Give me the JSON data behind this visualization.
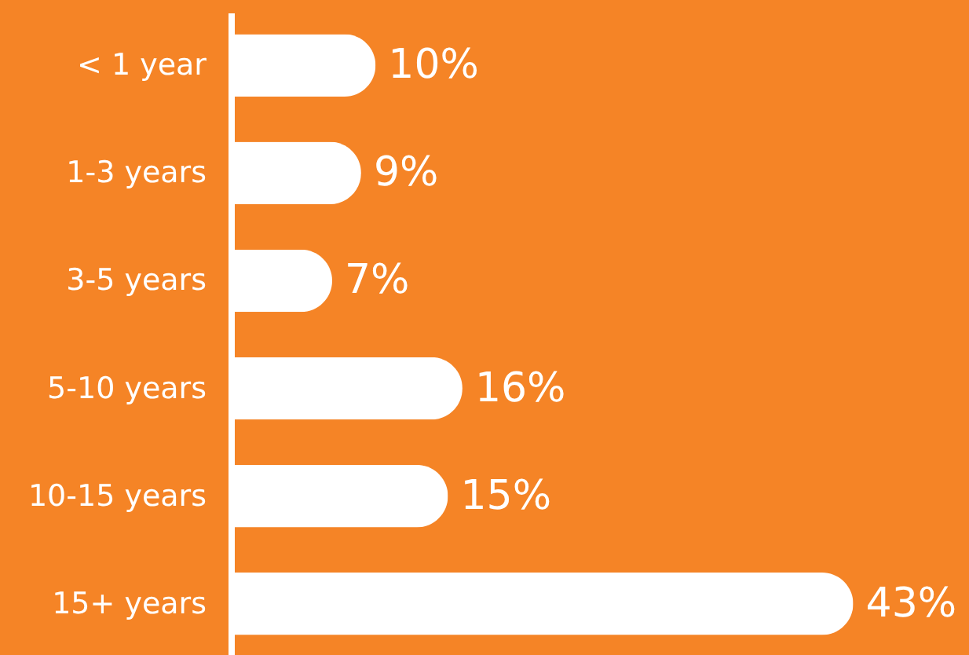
{
  "chart_data": {
    "type": "bar",
    "orientation": "horizontal",
    "categories": [
      "< 1 year",
      "1-3 years",
      "3-5 years",
      "5-10 years",
      "10-15 years",
      "15+ years"
    ],
    "values": [
      10,
      9,
      7,
      16,
      15,
      43
    ],
    "value_labels": [
      "10%",
      "9%",
      "7%",
      "16%",
      "15%",
      "43%"
    ],
    "color": "#ffffff",
    "xlim": [
      0,
      51
    ],
    "grid": false
  }
}
